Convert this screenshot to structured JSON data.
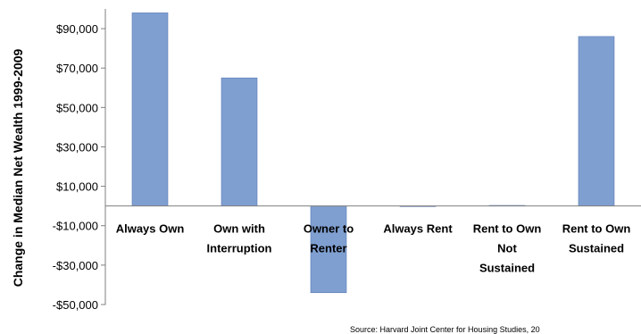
{
  "chart_data": {
    "type": "bar",
    "title": "",
    "xlabel": "",
    "ylabel": "Change in Median Net Wealth 1999-2009",
    "categories": [
      [
        "Always Own"
      ],
      [
        "Own with",
        "Interruption"
      ],
      [
        "Owner to",
        "Renter"
      ],
      [
        "Always Rent"
      ],
      [
        "Rent to Own",
        "Not",
        "Sustained"
      ],
      [
        "Rent to Own",
        "Sustained"
      ]
    ],
    "values": [
      98000,
      65000,
      -44000,
      -300,
      300,
      86000
    ],
    "ylim": [
      -50000,
      100000
    ],
    "yticks": [
      -50000,
      -30000,
      -10000,
      10000,
      30000,
      50000,
      70000,
      90000
    ],
    "ytick_labels": [
      "-$50,000",
      "-$30,000",
      "-$10,000",
      "$10,000",
      "$30,000",
      "$50,000",
      "$70,000",
      "$90,000"
    ],
    "grid": false,
    "legend": "none",
    "source_note": "Source: Harvard Joint Center for Housing Studies, 20",
    "colors": {
      "bar": "#7f9fd1",
      "bar_stroke": "#5a7bb5",
      "axis": "#7f7f7f"
    }
  }
}
